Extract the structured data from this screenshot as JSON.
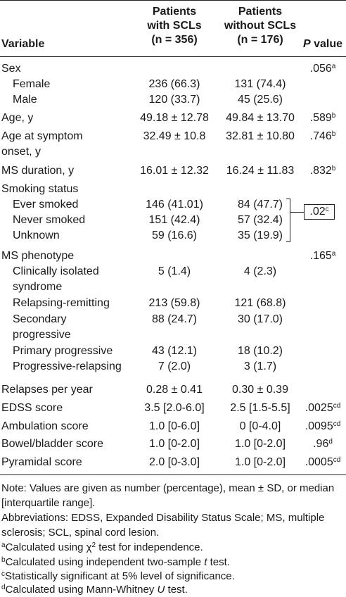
{
  "header": {
    "variable": "Variable",
    "with_line1": "Patients",
    "with_line2": "with SCLs",
    "with_line3": "(n = 356)",
    "without_line1": "Patients",
    "without_line2": "without SCLs",
    "without_line3": "(n = 176)",
    "p_italic": "P",
    "p_rest": " value"
  },
  "rows": {
    "sex": {
      "label": "Sex",
      "p": ".056",
      "p_sup": "a"
    },
    "female": {
      "label": "Female",
      "with": "236 (66.3)",
      "without": "131 (74.4)"
    },
    "male": {
      "label": "Male",
      "with": "120 (33.7)",
      "without": "45 (25.6)"
    },
    "age": {
      "label": "Age, y",
      "with": "49.18 ± 12.78",
      "without": "49.84 ± 13.70",
      "p": ".589",
      "p_sup": "b"
    },
    "age_onset": {
      "label1": "Age at symptom",
      "label2": "onset, y",
      "with": "32.49 ± 10.8",
      "without": "32.81 ± 10.80",
      "p": ".746",
      "p_sup": "b"
    },
    "ms_duration": {
      "label": "MS duration, y",
      "with": "16.01 ± 12.32",
      "without": "16.24 ± 11.83",
      "p": ".832",
      "p_sup": "b"
    },
    "smoking": {
      "label": "Smoking status",
      "p": ".02",
      "p_sup": "c"
    },
    "ever": {
      "label": "Ever smoked",
      "with": "146 (41.01)",
      "without": "84 (47.7)"
    },
    "never": {
      "label": "Never smoked",
      "with": "151 (42.4)",
      "without": "57 (32.4)"
    },
    "unknown": {
      "label": "Unknown",
      "with": "59 (16.6)",
      "without": "35 (19.9)"
    },
    "phenotype": {
      "label": "MS phenotype",
      "p": ".165",
      "p_sup": "a"
    },
    "cis": {
      "label1": "Clinically isolated",
      "label2": "syndrome",
      "with": "5 (1.4)",
      "without": "4 (2.3)"
    },
    "rr": {
      "label": "Relapsing-remitting",
      "with": "213 (59.8)",
      "without": "121 (68.8)"
    },
    "sp": {
      "label1": "Secondary",
      "label2": "progressive",
      "with": "88 (24.7)",
      "without": "30 (17.0)"
    },
    "pp": {
      "label": "Primary progressive",
      "with": "43 (12.1)",
      "without": "18 (10.2)"
    },
    "pr": {
      "label": "Progressive-relapsing",
      "with": "7 (2.0)",
      "without": "3 (1.7)"
    },
    "relapses": {
      "label": "Relapses per year",
      "with": "0.28 ± 0.41",
      "without": "0.30 ± 0.39"
    },
    "edss": {
      "label": "EDSS score",
      "with": "3.5 [2.0-6.0]",
      "without": "2.5 [1.5-5.5]",
      "p": ".0025",
      "p_sup": "cd"
    },
    "ambulation": {
      "label": "Ambulation score",
      "with": "1.0 [0-6.0]",
      "without": "0 [0-4.0]",
      "p": ".0095",
      "p_sup": "cd"
    },
    "bowel": {
      "label": "Bowel/bladder score",
      "with": "1.0 [0-2.0]",
      "without": "1.0 [0-2.0]",
      "p": ".96",
      "p_sup": "d"
    },
    "pyramidal": {
      "label": "Pyramidal score",
      "with": "2.0 [0-3.0]",
      "without": "1.0 [0-2.0]",
      "p": ".0005",
      "p_sup": "cd"
    }
  },
  "notes": {
    "note": "Note: Values are given as number (percentage), mean ± SD, or median [interquartile range].",
    "abbrev": "Abbreviations: EDSS, Expanded Disability Status Scale; MS, multiple sclerosis; SCL, spinal cord lesion.",
    "a_sup": "a",
    "a_pre": "Calculated using ",
    "a_chi": "χ",
    "a_two": "2",
    "a_post": " test for independence.",
    "b_sup": "b",
    "b_pre": "Calculated using independent two-sample ",
    "b_t": "t",
    "b_post": " test.",
    "c_sup": "c",
    "c_text": "Statistically significant at 5% level of significance.",
    "d_sup": "d",
    "d_pre": "Calculated using Mann-Whitney ",
    "d_u": "U",
    "d_post": " test."
  }
}
